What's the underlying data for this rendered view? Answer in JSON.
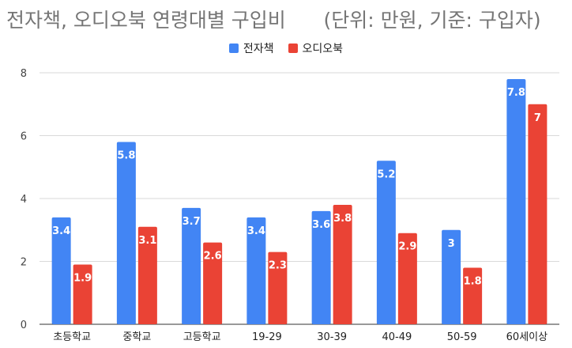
{
  "chart_data": {
    "type": "bar",
    "title": "전자책, 오디오북 연령대별 구입비",
    "subtitle": "(단위: 만원, 기준: 구입자)",
    "categories": [
      "초등학교",
      "중학교",
      "고등학교",
      "19-29",
      "30-39",
      "40-49",
      "50-59",
      "60세이상"
    ],
    "series": [
      {
        "name": "전자책",
        "color": "#4285f4",
        "values": [
          3.4,
          5.8,
          3.7,
          3.4,
          3.6,
          5.2,
          3,
          7.8
        ]
      },
      {
        "name": "오디오북",
        "color": "#ea4335",
        "values": [
          1.9,
          3.1,
          2.6,
          2.3,
          3.8,
          2.9,
          1.8,
          7
        ]
      }
    ],
    "ylim": [
      0,
      8
    ],
    "yticks": [
      0,
      2,
      4,
      6,
      8
    ],
    "grid": true,
    "legend": "top-center"
  }
}
